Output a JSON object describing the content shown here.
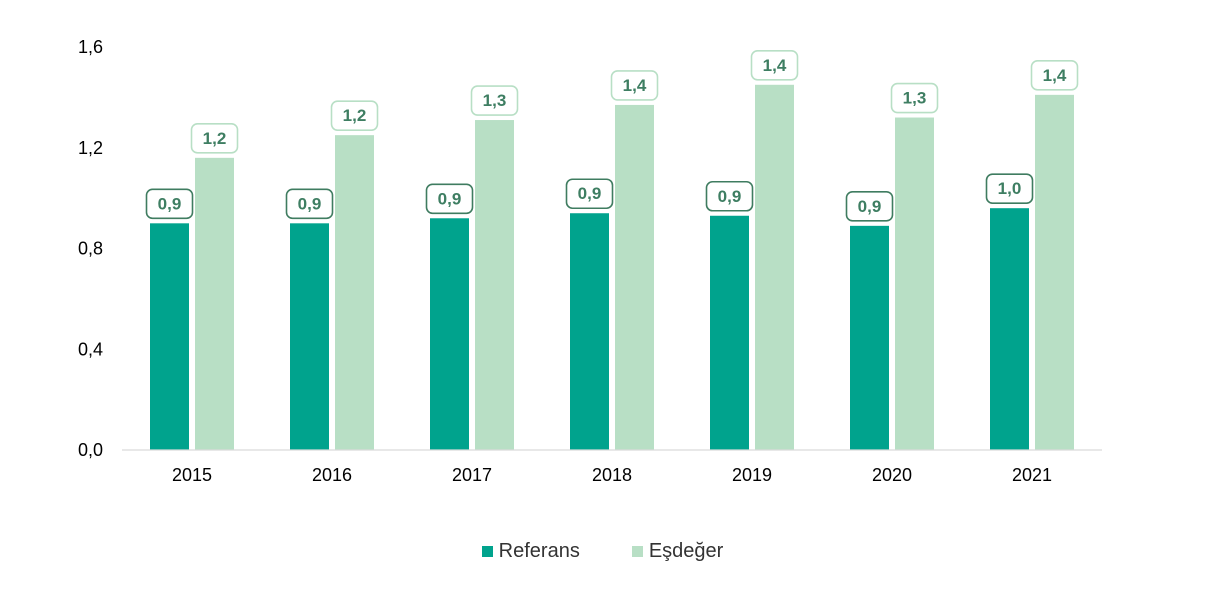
{
  "chart_data": {
    "type": "bar",
    "categories": [
      "2015",
      "2016",
      "2017",
      "2018",
      "2019",
      "2020",
      "2021"
    ],
    "series": [
      {
        "name": "Referans",
        "values": [
          0.9,
          0.9,
          0.92,
          0.94,
          0.93,
          0.89,
          0.96
        ],
        "labels": [
          "0,9",
          "0,9",
          "0,9",
          "0,9",
          "0,9",
          "0,9",
          "1,0"
        ],
        "color": "#00A38D"
      },
      {
        "name": "Eşdeğer",
        "values": [
          1.16,
          1.25,
          1.31,
          1.37,
          1.45,
          1.32,
          1.41
        ],
        "labels": [
          "1,2",
          "1,2",
          "1,3",
          "1,4",
          "1,4",
          "1,3",
          "1,4"
        ],
        "color": "#B8DFC5"
      }
    ],
    "y_ticks": [
      "0,0",
      "0,4",
      "0,8",
      "1,2",
      "1,6"
    ],
    "ylim": [
      0,
      1.6
    ],
    "label_text_color": "#3E7E62",
    "label_border_color": "#3F7C60",
    "legend_position": "bottom",
    "grid": false
  }
}
